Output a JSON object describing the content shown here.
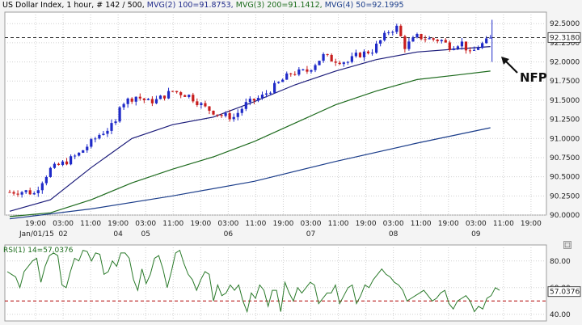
{
  "header": {
    "symbol": "US Dollar Index",
    "details": ", 1 hour, # 142 / 500,",
    "mvg2": "MVG(2) 100=91.8753,",
    "mvg3": "MVG(3) 200=91.1412,",
    "mvg4": "MVG(4) 50=92.1995"
  },
  "rsi_header": "RSI(1) 14=57.0376",
  "annotation": "NFP",
  "window_icons": [
    "maximize-icon",
    "close-icon"
  ],
  "colors": {
    "bull": "#1f2ac8",
    "bear": "#c81e1e",
    "ma50": "#1c1c7a",
    "ma100": "#1e6b1e",
    "ma200": "#1b3d8a",
    "rsi": "#2a7a2a",
    "level": "#b00000"
  },
  "chart_data": [
    {
      "type": "candlestick",
      "title": "US Dollar Index",
      "ylim": [
        90.0,
        92.65
      ],
      "y_ticks": [
        "92.5000",
        "92.2500",
        "92.0000",
        "91.7500",
        "91.5000",
        "91.2500",
        "91.0000",
        "90.7500",
        "90.5000",
        "90.2500",
        "90.0000"
      ],
      "price_line": 92.318,
      "price_line_label": "92.3180",
      "x_time_labels": [
        "19:00",
        "03:00",
        "11:00",
        "19:00",
        "03:00",
        "11:00",
        "19:00",
        "03:00",
        "11:00",
        "19:00",
        "03:00",
        "11:00",
        "19:00",
        "03:00",
        "11:00",
        "19:00",
        "03:00",
        "11:00",
        "19:00"
      ],
      "x_date_labels": [
        {
          "text": "Jan/01/15",
          "after_label": 0
        },
        {
          "text": "02",
          "after_label": 1
        },
        {
          "text": "04",
          "after_label": 3
        },
        {
          "text": "05",
          "after_label": 4
        },
        {
          "text": "06",
          "after_label": 7
        },
        {
          "text": "07",
          "after_label": 10
        },
        {
          "text": "08",
          "after_label": 13
        },
        {
          "text": "09",
          "after_label": 16
        }
      ],
      "bar_count": 103,
      "ohlc_anchors": [
        [
          0,
          90.3
        ],
        [
          4,
          90.31
        ],
        [
          6,
          90.28
        ],
        [
          8,
          90.45
        ],
        [
          10,
          90.6
        ],
        [
          14,
          90.7
        ],
        [
          17,
          90.8
        ],
        [
          22,
          91.05
        ],
        [
          24,
          91.12
        ],
        [
          26,
          91.2
        ],
        [
          27,
          91.45
        ],
        [
          31,
          91.55
        ],
        [
          34,
          91.48
        ],
        [
          36,
          91.5
        ],
        [
          40,
          91.62
        ],
        [
          44,
          91.56
        ],
        [
          48,
          91.4
        ],
        [
          52,
          91.3
        ],
        [
          55,
          91.28
        ],
        [
          58,
          91.45
        ],
        [
          62,
          91.55
        ],
        [
          65,
          91.68
        ],
        [
          69,
          91.85
        ],
        [
          73,
          91.88
        ],
        [
          77,
          92.08
        ],
        [
          79,
          92.03
        ],
        [
          83,
          92.0
        ],
        [
          85,
          92.08
        ],
        [
          89,
          92.15
        ],
        [
          93,
          92.4
        ],
        [
          95,
          92.45
        ],
        [
          97,
          92.2
        ],
        [
          100,
          92.33
        ],
        [
          103,
          92.3
        ],
        [
          106,
          92.28
        ],
        [
          108,
          92.2
        ],
        [
          110,
          92.24
        ],
        [
          111,
          92.25
        ],
        [
          112,
          92.18
        ],
        [
          113,
          92.1
        ],
        [
          115,
          92.2
        ],
        [
          118,
          92.3
        ]
      ],
      "series": [
        {
          "name": "MVG(4) 50",
          "value_last": 92.1995,
          "points": [
            [
              0,
              90.05
            ],
            [
              10,
              90.2
            ],
            [
              20,
              90.62
            ],
            [
              30,
              91.0
            ],
            [
              40,
              91.18
            ],
            [
              50,
              91.28
            ],
            [
              60,
              91.48
            ],
            [
              70,
              91.7
            ],
            [
              80,
              91.88
            ],
            [
              90,
              92.03
            ],
            [
              100,
              92.13
            ],
            [
              110,
              92.17
            ],
            [
              118,
              92.2
            ]
          ]
        },
        {
          "name": "MVG(2) 100",
          "value_last": 91.8753,
          "points": [
            [
              0,
              89.98
            ],
            [
              10,
              90.03
            ],
            [
              20,
              90.2
            ],
            [
              30,
              90.42
            ],
            [
              40,
              90.6
            ],
            [
              50,
              90.76
            ],
            [
              60,
              90.96
            ],
            [
              70,
              91.2
            ],
            [
              80,
              91.44
            ],
            [
              90,
              91.62
            ],
            [
              100,
              91.77
            ],
            [
              110,
              91.83
            ],
            [
              118,
              91.88
            ]
          ]
        },
        {
          "name": "MVG(3) 200",
          "value_last": 91.1412,
          "points": [
            [
              0,
              89.95
            ],
            [
              20,
              90.08
            ],
            [
              40,
              90.25
            ],
            [
              60,
              90.44
            ],
            [
              80,
              90.7
            ],
            [
              100,
              90.94
            ],
            [
              118,
              91.14
            ]
          ]
        }
      ]
    },
    {
      "type": "line",
      "title": "RSI(1) 14",
      "ylim": [
        35,
        92
      ],
      "y_ticks": [
        "80.00",
        "60.00",
        "40.00"
      ],
      "level": 50,
      "last_value": 57.0376,
      "last_value_label": "57.0376",
      "values": [
        72,
        70,
        68,
        60,
        72,
        76,
        80,
        82,
        64,
        76,
        84,
        86,
        84,
        62,
        60,
        72,
        82,
        80,
        88,
        87,
        80,
        86,
        85,
        70,
        72,
        80,
        76,
        86,
        86,
        82,
        66,
        58,
        74,
        63,
        70,
        82,
        84,
        74,
        60,
        72,
        86,
        88,
        78,
        70,
        66,
        58,
        66,
        72,
        70,
        50,
        62,
        54,
        56,
        62,
        58,
        62,
        50,
        42,
        56,
        52,
        62,
        58,
        46,
        58,
        58,
        42,
        64,
        56,
        50,
        60,
        56,
        60,
        64,
        62,
        48,
        52,
        56,
        56,
        62,
        48,
        54,
        60,
        62,
        48,
        54,
        62,
        60,
        66,
        70,
        74,
        70,
        68,
        64,
        62,
        58,
        50,
        52,
        54,
        56,
        58,
        54,
        50,
        52,
        56,
        58,
        48,
        44,
        50,
        52,
        54,
        50,
        42,
        46,
        44,
        52,
        54,
        60,
        58
      ]
    }
  ]
}
